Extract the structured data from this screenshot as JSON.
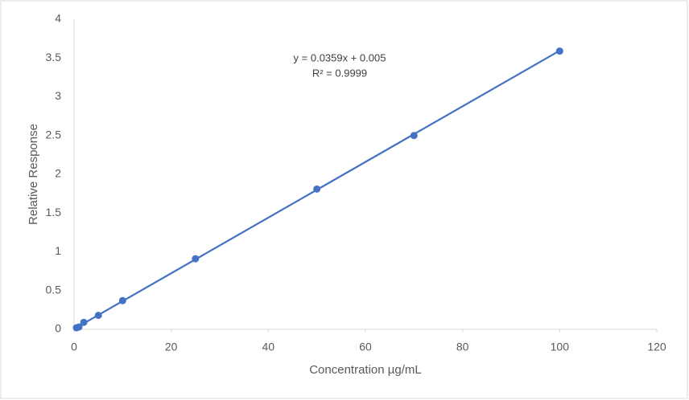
{
  "chart_data": {
    "type": "scatter",
    "x_label": "Concentration µg/mL",
    "y_label": "Relative Response",
    "x": [
      0.5,
      1,
      2,
      5,
      10,
      25,
      50,
      70,
      100
    ],
    "values": [
      0.02,
      0.03,
      0.09,
      0.18,
      0.37,
      0.91,
      1.81,
      2.5,
      3.59
    ],
    "color": "#4472c4",
    "xlim": [
      0,
      120
    ],
    "xticks": [
      0,
      20,
      40,
      60,
      80,
      100,
      120
    ],
    "ylim": [
      0,
      4
    ],
    "yticks": [
      0,
      0.5,
      1,
      1.5,
      2,
      2.5,
      3,
      3.5,
      4
    ],
    "grid": false,
    "trendline": {
      "slope": 0.0359,
      "intercept": 0.005,
      "equation": "y = 0.0359x + 0.005",
      "r_squared": "R² = 0.9999"
    }
  }
}
